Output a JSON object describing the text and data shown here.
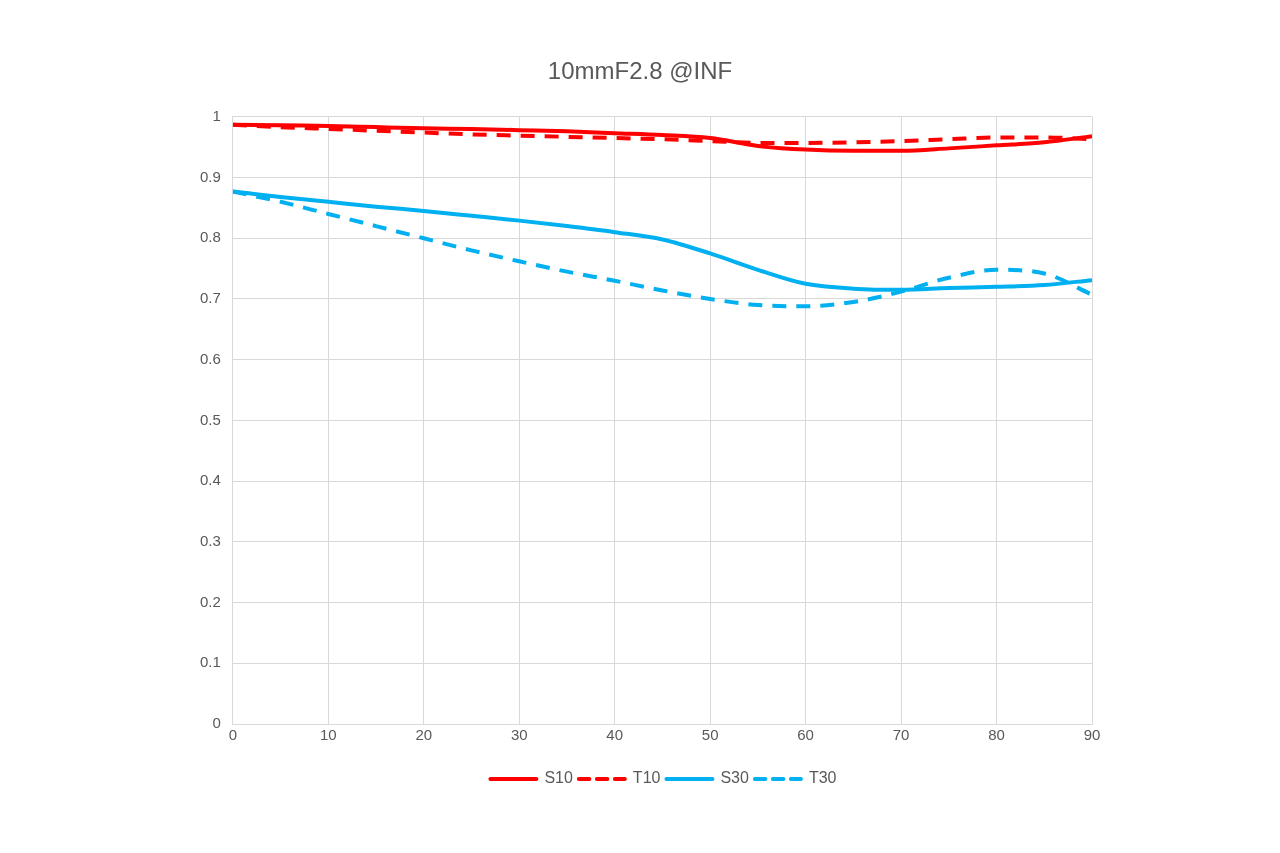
{
  "chart_data": {
    "type": "line",
    "title": "10mmF2.8 @INF",
    "x": [
      0,
      5,
      10,
      15,
      20,
      25,
      30,
      35,
      40,
      45,
      50,
      55,
      60,
      65,
      70,
      75,
      80,
      85,
      90
    ],
    "xlim": [
      0,
      90
    ],
    "xticks": [
      0,
      10,
      20,
      30,
      40,
      50,
      60,
      70,
      80,
      90
    ],
    "ylim": [
      0,
      1
    ],
    "yticks": [
      0,
      0.1,
      0.2,
      0.3,
      0.4,
      0.5,
      0.6,
      0.7,
      0.8,
      0.9,
      1
    ],
    "grid": true,
    "legend": "bottom",
    "marker": "none",
    "series": [
      {
        "name": "S10",
        "color": "#ff0000",
        "line_style": "solid",
        "values": [
          0.987,
          0.986,
          0.985,
          0.983,
          0.981,
          0.98,
          0.978,
          0.976,
          0.973,
          0.97,
          0.965,
          0.952,
          0.946,
          0.944,
          0.944,
          0.948,
          0.953,
          0.958,
          0.968
        ]
      },
      {
        "name": "T10",
        "color": "#ff0000",
        "line_style": "dashed",
        "values": [
          0.987,
          0.983,
          0.98,
          0.977,
          0.974,
          0.971,
          0.969,
          0.967,
          0.965,
          0.963,
          0.96,
          0.957,
          0.957,
          0.958,
          0.96,
          0.963,
          0.966,
          0.966,
          0.963
        ]
      },
      {
        "name": "S30",
        "color": "#00b0f0",
        "line_style": "solid",
        "values": [
          0.877,
          0.868,
          0.86,
          0.852,
          0.845,
          0.837,
          0.829,
          0.82,
          0.81,
          0.798,
          0.775,
          0.748,
          0.725,
          0.717,
          0.715,
          0.718,
          0.72,
          0.723,
          0.731
        ]
      },
      {
        "name": "T30",
        "color": "#00b0f0",
        "line_style": "dashed",
        "values": [
          0.877,
          0.86,
          0.84,
          0.82,
          0.8,
          0.78,
          0.762,
          0.745,
          0.73,
          0.714,
          0.7,
          0.69,
          0.688,
          0.695,
          0.712,
          0.735,
          0.748,
          0.742,
          0.707
        ]
      }
    ]
  }
}
